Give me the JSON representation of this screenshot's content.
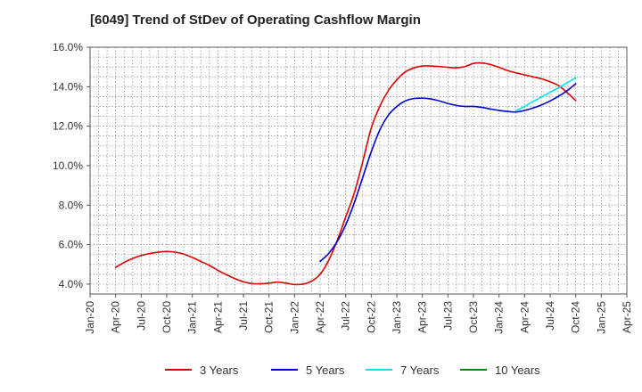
{
  "chart_data": {
    "type": "line",
    "title": "[6049]  Trend of StDev of Operating Cashflow Margin",
    "xlabel": "",
    "ylabel": "",
    "x_ticks": [
      "Jan-20",
      "Apr-20",
      "Jul-20",
      "Oct-20",
      "Jan-21",
      "Apr-21",
      "Jul-21",
      "Oct-21",
      "Jan-22",
      "Apr-22",
      "Jul-22",
      "Oct-22",
      "Jan-23",
      "Apr-23",
      "Jul-23",
      "Oct-23",
      "Jan-24",
      "Apr-24",
      "Jul-24",
      "Oct-24",
      "Jan-25",
      "Apr-25"
    ],
    "y_ticks": [
      "4.0%",
      "6.0%",
      "8.0%",
      "10.0%",
      "12.0%",
      "14.0%",
      "16.0%"
    ],
    "ylim": [
      3.5,
      16.0
    ],
    "y_tick_values": [
      4,
      6,
      8,
      10,
      12,
      14,
      16
    ],
    "grid": true,
    "legend_position": "bottom",
    "series": [
      {
        "name": "3 Years",
        "color": "#dd0000",
        "points": [
          [
            "Apr-20",
            4.85
          ],
          [
            "May-20",
            5.1
          ],
          [
            "Jun-20",
            5.3
          ],
          [
            "Jul-20",
            5.45
          ],
          [
            "Aug-20",
            5.55
          ],
          [
            "Sep-20",
            5.62
          ],
          [
            "Oct-20",
            5.65
          ],
          [
            "Nov-20",
            5.62
          ],
          [
            "Dec-20",
            5.52
          ],
          [
            "Jan-21",
            5.35
          ],
          [
            "Feb-21",
            5.15
          ],
          [
            "Mar-21",
            4.95
          ],
          [
            "Apr-21",
            4.7
          ],
          [
            "May-21",
            4.48
          ],
          [
            "Jun-21",
            4.28
          ],
          [
            "Jul-21",
            4.12
          ],
          [
            "Aug-21",
            4.03
          ],
          [
            "Sep-21",
            4.02
          ],
          [
            "Oct-21",
            4.05
          ],
          [
            "Nov-21",
            4.1
          ],
          [
            "Dec-21",
            4.05
          ],
          [
            "Jan-22",
            3.98
          ],
          [
            "Feb-22",
            4.0
          ],
          [
            "Mar-22",
            4.15
          ],
          [
            "Apr-22",
            4.5
          ],
          [
            "May-22",
            5.2
          ],
          [
            "Jun-22",
            6.2
          ],
          [
            "Jul-22",
            7.4
          ],
          [
            "Aug-22",
            8.6
          ],
          [
            "Sep-22",
            10.2
          ],
          [
            "Oct-22",
            11.9
          ],
          [
            "Nov-22",
            13.0
          ],
          [
            "Dec-22",
            13.8
          ],
          [
            "Jan-23",
            14.35
          ],
          [
            "Feb-23",
            14.75
          ],
          [
            "Mar-23",
            14.95
          ],
          [
            "Apr-23",
            15.05
          ],
          [
            "May-23",
            15.05
          ],
          [
            "Jun-23",
            15.02
          ],
          [
            "Jul-23",
            14.98
          ],
          [
            "Aug-23",
            14.96
          ],
          [
            "Sep-23",
            15.02
          ],
          [
            "Oct-23",
            15.18
          ],
          [
            "Nov-23",
            15.2
          ],
          [
            "Dec-23",
            15.12
          ],
          [
            "Jan-24",
            14.98
          ],
          [
            "Feb-24",
            14.82
          ],
          [
            "Mar-24",
            14.7
          ],
          [
            "Apr-24",
            14.6
          ],
          [
            "May-24",
            14.5
          ],
          [
            "Jun-24",
            14.4
          ],
          [
            "Jul-24",
            14.25
          ],
          [
            "Aug-24",
            14.05
          ],
          [
            "Sep-24",
            13.7
          ],
          [
            "Oct-24",
            13.3
          ]
        ]
      },
      {
        "name": "5 Years",
        "color": "#0000cc",
        "points": [
          [
            "Apr-22",
            5.15
          ],
          [
            "May-22",
            5.55
          ],
          [
            "Jun-22",
            6.15
          ],
          [
            "Jul-22",
            7.0
          ],
          [
            "Aug-22",
            8.1
          ],
          [
            "Sep-22",
            9.4
          ],
          [
            "Oct-22",
            10.7
          ],
          [
            "Nov-22",
            11.8
          ],
          [
            "Dec-22",
            12.55
          ],
          [
            "Jan-23",
            13.0
          ],
          [
            "Feb-23",
            13.28
          ],
          [
            "Mar-23",
            13.4
          ],
          [
            "Apr-23",
            13.42
          ],
          [
            "May-23",
            13.38
          ],
          [
            "Jun-23",
            13.28
          ],
          [
            "Jul-23",
            13.15
          ],
          [
            "Aug-23",
            13.05
          ],
          [
            "Sep-23",
            13.0
          ],
          [
            "Oct-23",
            13.0
          ],
          [
            "Nov-23",
            12.95
          ],
          [
            "Dec-23",
            12.87
          ],
          [
            "Jan-24",
            12.8
          ],
          [
            "Feb-24",
            12.75
          ],
          [
            "Mar-24",
            12.72
          ],
          [
            "Apr-24",
            12.8
          ],
          [
            "May-24",
            12.92
          ],
          [
            "Jun-24",
            13.08
          ],
          [
            "Jul-24",
            13.28
          ],
          [
            "Aug-24",
            13.52
          ],
          [
            "Sep-24",
            13.8
          ],
          [
            "Oct-24",
            14.15
          ]
        ]
      },
      {
        "name": "7 Years",
        "color": "#00e5ee",
        "points": [
          [
            "Mar-24",
            12.78
          ],
          [
            "Apr-24",
            13.0
          ],
          [
            "May-24",
            13.25
          ],
          [
            "Jun-24",
            13.48
          ],
          [
            "Jul-24",
            13.72
          ],
          [
            "Aug-24",
            13.95
          ],
          [
            "Sep-24",
            14.2
          ],
          [
            "Oct-24",
            14.45
          ]
        ]
      },
      {
        "name": "10 Years",
        "color": "#008800",
        "points": []
      }
    ]
  }
}
